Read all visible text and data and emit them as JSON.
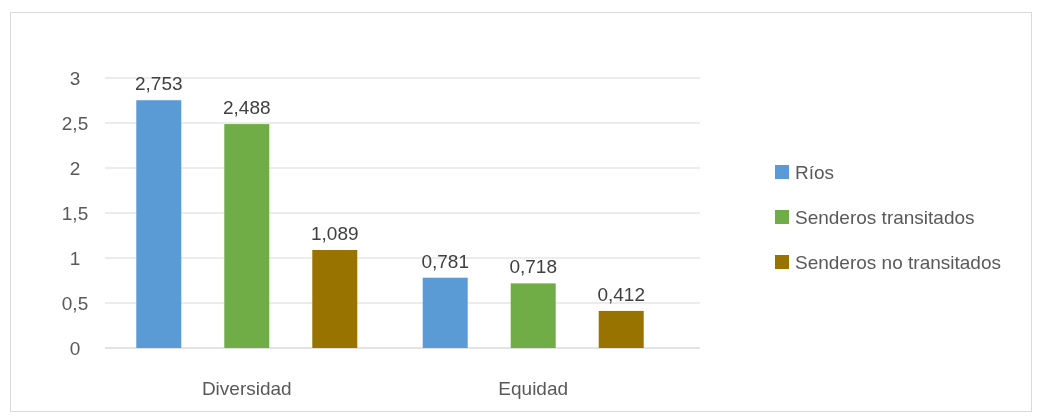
{
  "chart_data": {
    "type": "bar",
    "categories": [
      "Diversidad",
      "Equidad"
    ],
    "series": [
      {
        "name": "Ríos",
        "color": "#5b9bd5",
        "values": [
          2.753,
          0.781
        ],
        "value_labels": [
          "2,753",
          "0,781"
        ]
      },
      {
        "name": "Senderos transitados",
        "color": "#70ad47",
        "values": [
          2.488,
          0.718
        ],
        "value_labels": [
          "2,488",
          "0,718"
        ]
      },
      {
        "name": "Senderos no transitados",
        "color": "#997300",
        "values": [
          1.089,
          0.412
        ],
        "value_labels": [
          "1,089",
          "0,412"
        ]
      }
    ],
    "ylim": [
      0,
      3
    ],
    "yticks": [
      0,
      {
        "value": 0.5,
        "label": "0,5"
      },
      1,
      {
        "value": 1.5,
        "label": "1,5"
      },
      2,
      {
        "value": 2.5,
        "label": "2,5"
      },
      3
    ],
    "grid": "y",
    "legend": "right"
  }
}
